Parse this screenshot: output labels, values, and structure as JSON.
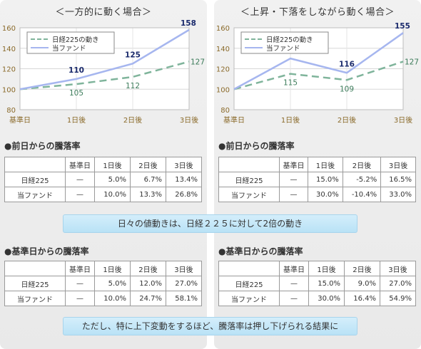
{
  "panels": [
    {
      "title": "＜一方的に動く場合＞",
      "chart_data": {
        "type": "line",
        "categories": [
          "基準日",
          "1日後",
          "2日後",
          "3日後"
        ],
        "ylim": [
          80,
          160
        ],
        "yticks": [
          80,
          100,
          120,
          140,
          160
        ],
        "series": [
          {
            "name": "日経225の動き",
            "values": [
              100,
              105,
              112,
              127
            ],
            "labels": [
              "",
              "105",
              "112",
              "127"
            ],
            "color": "#7fb49b",
            "dashed": true
          },
          {
            "name": "当ファンド",
            "values": [
              100,
              110,
              125,
              158
            ],
            "labels": [
              "",
              "110",
              "125",
              "158"
            ],
            "color": "#a6b6ef",
            "dashed": false
          }
        ]
      },
      "day_section": {
        "heading": "●前日からの騰落率",
        "headers": [
          "基準日",
          "1日後",
          "2日後",
          "3日後"
        ],
        "rows": [
          {
            "label": "日経225",
            "cells": [
              "—",
              "5.0%",
              "6.7%",
              "13.4%"
            ]
          },
          {
            "label": "当ファンド",
            "cells": [
              "—",
              "10.0%",
              "13.3%",
              "26.8%"
            ]
          }
        ]
      },
      "base_section": {
        "heading": "●基準日からの騰落率",
        "headers": [
          "基準日",
          "1日後",
          "2日後",
          "3日後"
        ],
        "rows": [
          {
            "label": "日経225",
            "cells": [
              "—",
              "5.0%",
              "12.0%",
              "27.0%"
            ]
          },
          {
            "label": "当ファンド",
            "cells": [
              "—",
              "10.0%",
              "24.7%",
              "58.1%"
            ]
          }
        ]
      }
    },
    {
      "title": "＜上昇・下落をしながら動く場合＞",
      "chart_data": {
        "type": "line",
        "categories": [
          "基準日",
          "1日後",
          "2日後",
          "3日後"
        ],
        "ylim": [
          80,
          160
        ],
        "yticks": [
          80,
          100,
          120,
          140,
          160
        ],
        "series": [
          {
            "name": "日経225の動き",
            "values": [
              100,
              115,
              109,
              127
            ],
            "labels": [
              "",
              "115",
              "109",
              "127"
            ],
            "color": "#7fb49b",
            "dashed": true
          },
          {
            "name": "当ファンド",
            "values": [
              100,
              130,
              116,
              155
            ],
            "labels": [
              "",
              "130",
              "116",
              "155"
            ],
            "color": "#a6b6ef",
            "dashed": false
          }
        ]
      },
      "day_section": {
        "heading": "●前日からの騰落率",
        "headers": [
          "基準日",
          "1日後",
          "2日後",
          "3日後"
        ],
        "rows": [
          {
            "label": "日経225",
            "cells": [
              "—",
              "15.0%",
              "-5.2%",
              "16.5%"
            ]
          },
          {
            "label": "当ファンド",
            "cells": [
              "—",
              "30.0%",
              "-10.4%",
              "33.0%"
            ]
          }
        ]
      },
      "base_section": {
        "heading": "●基準日からの騰落率",
        "headers": [
          "基準日",
          "1日後",
          "2日後",
          "3日後"
        ],
        "rows": [
          {
            "label": "日経225",
            "cells": [
              "—",
              "15.0%",
              "9.0%",
              "27.0%"
            ]
          },
          {
            "label": "当ファンド",
            "cells": [
              "—",
              "30.0%",
              "16.4%",
              "54.9%"
            ]
          }
        ]
      }
    }
  ],
  "banners": {
    "top": "日々の値動きは、日経２２５に対して2倍の動き",
    "bottom": "ただし、特に上下変動をするほど、騰落率は押し下げられる結果に"
  },
  "colors": {
    "nikkei_label": "#3e7d5c",
    "fund_label": "#1a2a6c",
    "axis_tick": "#8a6a2a"
  }
}
